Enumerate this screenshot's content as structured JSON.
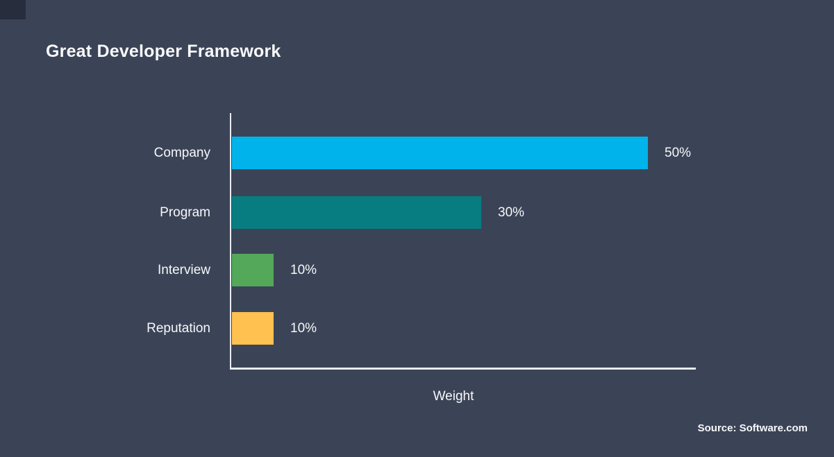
{
  "page": {
    "background": "#3B4457",
    "corner_accent": "#272D3C",
    "text_color": "#F7F8FA"
  },
  "chart_data": {
    "type": "bar",
    "orientation": "horizontal",
    "title": "Great Developer Framework",
    "categories": [
      "Company",
      "Program",
      "Interview",
      "Reputation"
    ],
    "values": [
      50,
      30,
      10,
      10
    ],
    "value_labels": [
      "50%",
      "30%",
      "10%",
      "10%"
    ],
    "bar_colors": [
      "#00B3EB",
      "#087D81",
      "#54A85A",
      "#FFC14F"
    ],
    "xlabel": "Weight",
    "ylabel": "",
    "xlim": [
      0,
      56
    ],
    "grid": false,
    "legend": false,
    "axis_color": "#E9EBEF"
  },
  "source": "Source: Software.com"
}
